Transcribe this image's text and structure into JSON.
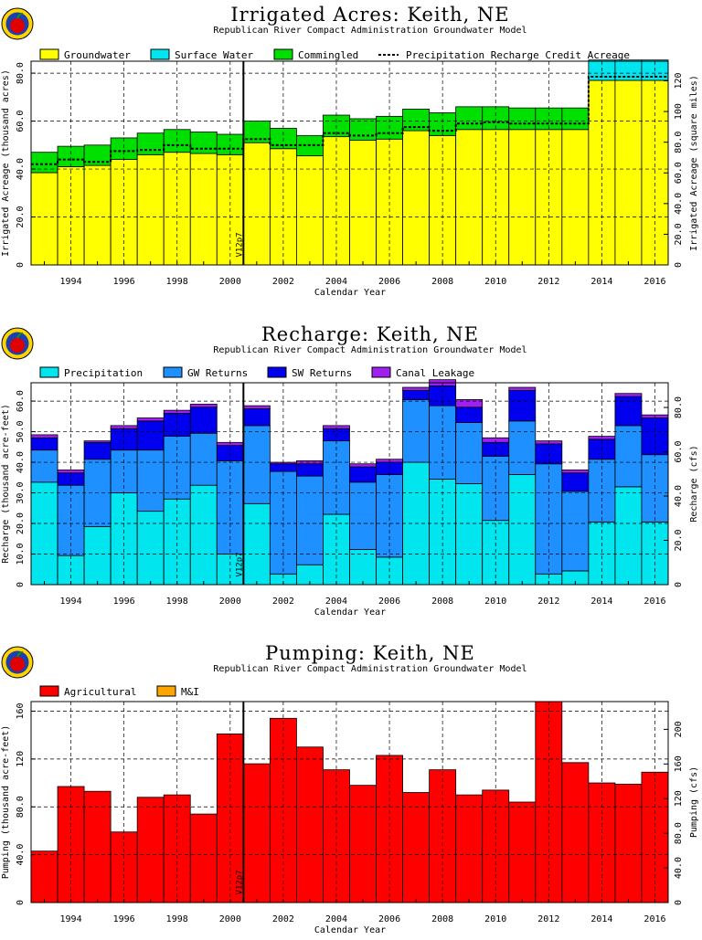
{
  "chart_data": [
    {
      "type": "bar",
      "title": "Irrigated Acres: Keith, NE",
      "subtitle": "Republican River Compact Administration Groundwater Model",
      "xlabel": "Calendar Year",
      "ylabel": "Irrigated Acreage (thousand acres)",
      "ylabel_right": "Irrigated Acreage (square miles)",
      "ylim": [
        0,
        85
      ],
      "yticks": [
        "0",
        "20.0",
        "40.0",
        "60.0",
        "80.0"
      ],
      "ytick_values": [
        0,
        20,
        40,
        60,
        80
      ],
      "yticks_right": [
        "0",
        "20.0",
        "40.0",
        "60.0",
        "80.0",
        "100",
        "120"
      ],
      "right_factor": 1.5625,
      "stacked": true,
      "marker": {
        "x": 2000.5,
        "label": "V12p7"
      },
      "categories": [
        1993,
        1994,
        1995,
        1996,
        1997,
        1998,
        1999,
        2000,
        2001,
        2002,
        2003,
        2004,
        2005,
        2006,
        2007,
        2008,
        2009,
        2010,
        2011,
        2012,
        2013,
        2014,
        2015,
        2016
      ],
      "xtick_labels": [
        "1994",
        "1996",
        "1998",
        "2000",
        "2002",
        "2004",
        "2006",
        "2008",
        "2010",
        "2012",
        "2014",
        "2016"
      ],
      "series": [
        {
          "name": "Groundwater",
          "color": "#ffff00",
          "values": [
            38.5,
            41,
            41.5,
            44,
            46,
            47,
            46.5,
            46,
            51,
            48.5,
            45.5,
            53.5,
            52,
            52.5,
            56,
            54,
            56.5,
            56.5,
            56.5,
            56.5,
            56.5,
            77,
            77,
            77
          ]
        },
        {
          "name": "Surface Water",
          "color": "#00e5ee",
          "values": [
            0,
            0,
            0,
            0,
            0,
            0,
            0,
            0,
            0,
            0,
            0,
            0,
            0,
            0,
            0,
            0,
            0,
            0,
            0,
            0,
            0,
            8.5,
            8.5,
            8.5
          ]
        },
        {
          "name": "Commingled",
          "color": "#00e000",
          "values": [
            8.5,
            8.5,
            8.5,
            9,
            9,
            9.5,
            9,
            8.5,
            9,
            8.5,
            8.5,
            9,
            9,
            9.5,
            9,
            9.5,
            9.5,
            9.5,
            9,
            9,
            9,
            0,
            0,
            0
          ]
        }
      ],
      "line_series": {
        "name": "Precipitation Recharge Credit Acreage",
        "values": [
          42,
          44,
          43,
          47.5,
          48,
          50,
          48.5,
          48.5,
          52.5,
          50,
          50,
          55,
          54,
          55,
          57.5,
          56,
          59,
          59.5,
          59,
          59,
          59,
          78.5,
          78.5,
          78.5
        ]
      }
    },
    {
      "type": "bar",
      "title": "Recharge: Keith, NE",
      "subtitle": "Republican River Compact Administration Groundwater Model",
      "xlabel": "Calendar Year",
      "ylabel": "Recharge (thousand acre-feet)",
      "ylabel_right": "Recharge (cfs)",
      "ylim": [
        0,
        66
      ],
      "yticks": [
        "0",
        "10.0",
        "20.0",
        "30.0",
        "40.0",
        "50.0",
        "60.0"
      ],
      "ytick_values": [
        0,
        10,
        20,
        30,
        40,
        50,
        60
      ],
      "yticks_right": [
        "0",
        "20.0",
        "40.0",
        "60.0",
        "80.0"
      ],
      "right_factor": 1.3812,
      "stacked": true,
      "marker": {
        "x": 2000.5,
        "label": "V12p7"
      },
      "categories": [
        1993,
        1994,
        1995,
        1996,
        1997,
        1998,
        1999,
        2000,
        2001,
        2002,
        2003,
        2004,
        2005,
        2006,
        2007,
        2008,
        2009,
        2010,
        2011,
        2012,
        2013,
        2014,
        2015,
        2016
      ],
      "xtick_labels": [
        "1994",
        "1996",
        "1998",
        "2000",
        "2002",
        "2004",
        "2006",
        "2008",
        "2010",
        "2012",
        "2014",
        "2016"
      ],
      "series": [
        {
          "name": "Precipitation",
          "color": "#00e5ee",
          "values": [
            33.5,
            9.5,
            19,
            30,
            24,
            28,
            32.5,
            10,
            26.5,
            3.5,
            6.5,
            23,
            11.5,
            9,
            40,
            34.5,
            33,
            21,
            36,
            3.5,
            4.5,
            20.5,
            32,
            20.5
          ]
        },
        {
          "name": "GW Returns",
          "color": "#1e90ff",
          "values": [
            10.5,
            23,
            22,
            14,
            20,
            20.5,
            17,
            30.5,
            25.5,
            33.5,
            29,
            24,
            22,
            27,
            20.5,
            24,
            20,
            21,
            17.5,
            36,
            26,
            20.5,
            20,
            22
          ]
        },
        {
          "name": "SW Returns",
          "color": "#0000ee",
          "values": [
            4,
            4,
            5.5,
            7,
            9.5,
            7.5,
            8.5,
            5,
            5.5,
            2.5,
            4,
            4,
            5,
            4,
            3,
            6.5,
            5,
            4.5,
            10,
            6.5,
            6,
            6.5,
            9.5,
            12
          ]
        },
        {
          "name": "Canal Leakage",
          "color": "#a020f0",
          "values": [
            1,
            1,
            0.5,
            1,
            1,
            1,
            1,
            1,
            1,
            0.5,
            1,
            1,
            1,
            1,
            1,
            2,
            2.5,
            1.5,
            1,
            1,
            1,
            1,
            1,
            1
          ]
        }
      ]
    },
    {
      "type": "bar",
      "title": "Pumping: Keith, NE",
      "subtitle": "Republican River Compact Administration Groundwater Model",
      "xlabel": "Calendar Year",
      "ylabel": "Pumping (thousand acre-feet)",
      "ylabel_right": "Pumping (cfs)",
      "ylim": [
        0,
        168
      ],
      "yticks": [
        "0",
        "40.0",
        "80.0",
        "120",
        "160"
      ],
      "ytick_values": [
        0,
        40,
        80,
        120,
        160
      ],
      "yticks_right": [
        "0",
        "40.0",
        "80.0",
        "120",
        "160",
        "200"
      ],
      "right_factor": 1.3812,
      "stacked": true,
      "marker": {
        "x": 2000.5,
        "label": "V12p7"
      },
      "categories": [
        1993,
        1994,
        1995,
        1996,
        1997,
        1998,
        1999,
        2000,
        2001,
        2002,
        2003,
        2004,
        2005,
        2006,
        2007,
        2008,
        2009,
        2010,
        2011,
        2012,
        2013,
        2014,
        2015,
        2016
      ],
      "xtick_labels": [
        "1994",
        "1996",
        "1998",
        "2000",
        "2002",
        "2004",
        "2006",
        "2008",
        "2010",
        "2012",
        "2014",
        "2016"
      ],
      "series": [
        {
          "name": "Agricultural",
          "color": "#ff0000",
          "values": [
            43,
            97,
            93,
            59,
            88,
            90,
            74,
            141,
            116,
            154,
            130,
            111,
            98,
            123,
            92,
            111,
            90,
            94,
            84,
            168,
            117,
            100,
            99,
            109
          ]
        },
        {
          "name": "M&I",
          "color": "#ffa500",
          "values": [
            0,
            0,
            0,
            0,
            0,
            0,
            0,
            0,
            0,
            0,
            0,
            0,
            0,
            0,
            0,
            0,
            0,
            0,
            0,
            0,
            0,
            0,
            0,
            0
          ]
        }
      ]
    }
  ]
}
